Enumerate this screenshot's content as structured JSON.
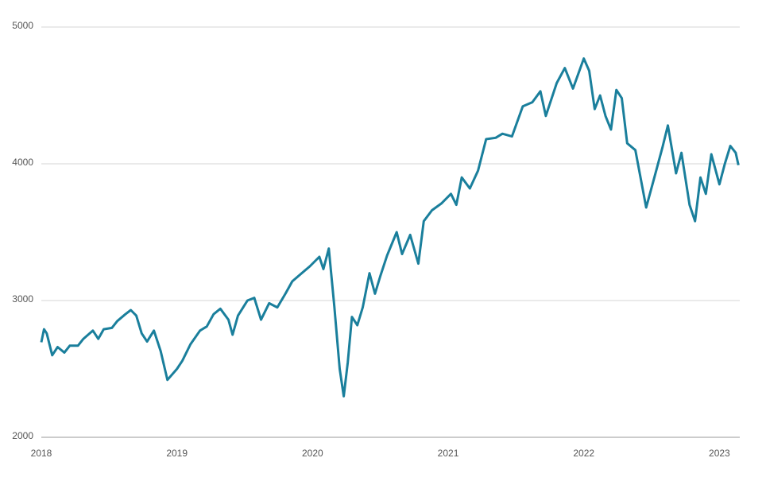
{
  "chart_data": {
    "type": "line",
    "x": [
      2018.0,
      2018.02,
      2018.04,
      2018.08,
      2018.12,
      2018.17,
      2018.21,
      2018.27,
      2018.31,
      2018.38,
      2018.42,
      2018.46,
      2018.52,
      2018.56,
      2018.62,
      2018.66,
      2018.7,
      2018.74,
      2018.78,
      2018.83,
      2018.88,
      2018.93,
      2019.0,
      2019.04,
      2019.1,
      2019.17,
      2019.22,
      2019.27,
      2019.32,
      2019.38,
      2019.41,
      2019.45,
      2019.52,
      2019.57,
      2019.62,
      2019.68,
      2019.74,
      2019.8,
      2019.85,
      2019.92,
      2019.98,
      2020.05,
      2020.08,
      2020.12,
      2020.16,
      2020.2,
      2020.23,
      2020.26,
      2020.29,
      2020.33,
      2020.37,
      2020.42,
      2020.46,
      2020.5,
      2020.55,
      2020.62,
      2020.66,
      2020.72,
      2020.78,
      2020.82,
      2020.88,
      2020.95,
      2021.02,
      2021.06,
      2021.1,
      2021.16,
      2021.22,
      2021.28,
      2021.35,
      2021.4,
      2021.47,
      2021.55,
      2021.62,
      2021.68,
      2021.72,
      2021.8,
      2021.86,
      2021.92,
      2022.0,
      2022.04,
      2022.08,
      2022.12,
      2022.16,
      2022.2,
      2022.24,
      2022.28,
      2022.32,
      2022.38,
      2022.46,
      2022.52,
      2022.58,
      2022.62,
      2022.68,
      2022.72,
      2022.78,
      2022.82,
      2022.86,
      2022.9,
      2022.94,
      2023.0,
      2023.04,
      2023.08,
      2023.12,
      2023.14
    ],
    "series": [
      {
        "color": "#1a7f9c",
        "values": [
          2695,
          2790,
          2760,
          2600,
          2660,
          2620,
          2670,
          2670,
          2720,
          2780,
          2720,
          2790,
          2800,
          2850,
          2900,
          2930,
          2890,
          2760,
          2700,
          2780,
          2630,
          2420,
          2500,
          2560,
          2680,
          2780,
          2810,
          2900,
          2940,
          2860,
          2750,
          2890,
          3000,
          3020,
          2860,
          2980,
          2950,
          3050,
          3140,
          3200,
          3250,
          3320,
          3230,
          3380,
          2960,
          2500,
          2300,
          2550,
          2880,
          2820,
          2950,
          3200,
          3050,
          3180,
          3330,
          3500,
          3340,
          3480,
          3270,
          3580,
          3660,
          3710,
          3780,
          3700,
          3900,
          3820,
          3950,
          4180,
          4190,
          4220,
          4200,
          4420,
          4450,
          4530,
          4350,
          4590,
          4700,
          4550,
          4770,
          4680,
          4400,
          4500,
          4350,
          4250,
          4540,
          4480,
          4150,
          4100,
          3680,
          3900,
          4120,
          4280,
          3930,
          4080,
          3700,
          3580,
          3900,
          3780,
          4070,
          3850,
          4000,
          4130,
          4080,
          3990
        ]
      }
    ],
    "xlim": [
      2018,
      2023.15
    ],
    "xticks": [
      2018,
      2019,
      2020,
      2021,
      2022,
      2023
    ],
    "ylim": [
      2000,
      5000
    ],
    "yticks": [
      2000,
      3000,
      4000,
      5000
    ],
    "grid": true
  }
}
